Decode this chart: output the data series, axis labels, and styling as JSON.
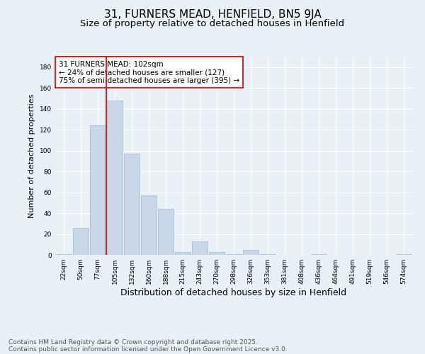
{
  "title": "31, FURNERS MEAD, HENFIELD, BN5 9JA",
  "subtitle": "Size of property relative to detached houses in Henfield",
  "xlabel": "Distribution of detached houses by size in Henfield",
  "ylabel": "Number of detached properties",
  "categories": [
    "22sqm",
    "50sqm",
    "77sqm",
    "105sqm",
    "132sqm",
    "160sqm",
    "188sqm",
    "215sqm",
    "243sqm",
    "270sqm",
    "298sqm",
    "326sqm",
    "353sqm",
    "381sqm",
    "408sqm",
    "436sqm",
    "464sqm",
    "491sqm",
    "519sqm",
    "546sqm",
    "574sqm"
  ],
  "values": [
    1,
    26,
    124,
    148,
    97,
    57,
    44,
    3,
    13,
    3,
    1,
    5,
    1,
    0,
    0,
    1,
    0,
    0,
    0,
    0,
    1
  ],
  "bar_color": "#c8d8e8",
  "bar_edge_color": "#a0b8d0",
  "vline_color": "#cc0000",
  "vline_x": 2.5,
  "annotation_text": "31 FURNERS MEAD: 102sqm\n← 24% of detached houses are smaller (127)\n75% of semi-detached houses are larger (395) →",
  "annotation_box_color": "#ffffff",
  "annotation_box_edge": "#cc0000",
  "annotation_fontsize": 7.5,
  "ylim": [
    0,
    190
  ],
  "yticks": [
    0,
    20,
    40,
    60,
    80,
    100,
    120,
    140,
    160,
    180
  ],
  "background_color": "#e8f0f8",
  "grid_color": "#ffffff",
  "title_fontsize": 11,
  "subtitle_fontsize": 9.5,
  "xlabel_fontsize": 9,
  "ylabel_fontsize": 8,
  "tick_fontsize": 6.5,
  "footer_line1": "Contains HM Land Registry data © Crown copyright and database right 2025.",
  "footer_line2": "Contains public sector information licensed under the Open Government Licence v3.0.",
  "footer_fontsize": 6.5
}
